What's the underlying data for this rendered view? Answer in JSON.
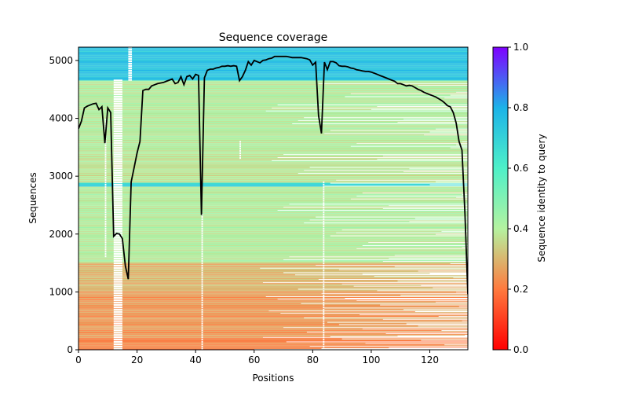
{
  "chart_data": {
    "type": "heatmap",
    "title": "Sequence coverage",
    "xlabel": "Positions",
    "ylabel": "Sequences",
    "xlim": [
      0,
      133
    ],
    "ylim": [
      0,
      5230
    ],
    "xticks": [
      0,
      20,
      40,
      60,
      80,
      100,
      120
    ],
    "yticks": [
      0,
      1000,
      2000,
      3000,
      4000,
      5000
    ],
    "grid": false,
    "colorbar": {
      "label": "Sequence identity to query",
      "range": [
        0.0,
        1.0
      ],
      "ticks": [
        "0.0",
        "0.2",
        "0.4",
        "0.6",
        "0.8",
        "1.0"
      ],
      "colormap": "rainbow_r"
    },
    "identity_bands": [
      {
        "y": [
          0,
          200
        ],
        "identity": 0.22
      },
      {
        "y": [
          200,
          1000
        ],
        "identity": 0.25
      },
      {
        "y": [
          1000,
          1500
        ],
        "identity": 0.3
      },
      {
        "y": [
          1500,
          2820
        ],
        "identity": 0.4
      },
      {
        "y": [
          2820,
          2880
        ],
        "identity": 0.7
      },
      {
        "y": [
          2880,
          3400
        ],
        "identity": 0.38
      },
      {
        "y": [
          3400,
          4650
        ],
        "identity": 0.4
      },
      {
        "y": [
          4650,
          5230
        ],
        "identity": 0.75
      }
    ],
    "coverage_line": {
      "color": "#000000",
      "x": [
        0,
        1,
        2,
        3,
        4,
        5,
        6,
        7,
        8,
        9,
        10,
        11,
        12,
        13,
        14,
        15,
        16,
        17,
        18,
        19,
        20,
        21,
        22,
        23,
        24,
        25,
        26,
        27,
        28,
        29,
        30,
        31,
        32,
        33,
        34,
        35,
        36,
        37,
        38,
        39,
        40,
        41,
        42,
        43,
        44,
        45,
        46,
        47,
        48,
        49,
        50,
        51,
        52,
        53,
        54,
        55,
        56,
        57,
        58,
        59,
        60,
        61,
        62,
        63,
        64,
        65,
        66,
        67,
        68,
        69,
        70,
        71,
        72,
        73,
        74,
        75,
        76,
        77,
        78,
        79,
        80,
        81,
        82,
        83,
        84,
        85,
        86,
        87,
        88,
        89,
        90,
        91,
        92,
        93,
        94,
        95,
        96,
        97,
        98,
        99,
        100,
        101,
        102,
        103,
        104,
        105,
        106,
        107,
        108,
        109,
        110,
        111,
        112,
        113,
        114,
        115,
        116,
        117,
        118,
        119,
        120,
        121,
        122,
        123,
        124,
        125,
        126,
        127,
        128,
        129,
        130,
        131,
        132,
        133
      ],
      "y": [
        3820,
        3950,
        4180,
        4210,
        4230,
        4250,
        4260,
        4150,
        4200,
        3570,
        4180,
        4100,
        1960,
        2010,
        2000,
        1920,
        1450,
        1220,
        2900,
        3150,
        3400,
        3600,
        4480,
        4500,
        4500,
        4560,
        4580,
        4600,
        4610,
        4620,
        4640,
        4660,
        4680,
        4600,
        4620,
        4720,
        4580,
        4720,
        4740,
        4680,
        4760,
        4740,
        2330,
        4700,
        4830,
        4850,
        4850,
        4870,
        4880,
        4900,
        4900,
        4910,
        4900,
        4910,
        4900,
        4650,
        4720,
        4830,
        4980,
        4920,
        5000,
        4980,
        4960,
        5000,
        5010,
        5030,
        5040,
        5070,
        5070,
        5070,
        5070,
        5070,
        5060,
        5050,
        5050,
        5050,
        5050,
        5040,
        5030,
        5010,
        4920,
        4970,
        4050,
        3740,
        4970,
        4840,
        4980,
        4980,
        4960,
        4910,
        4900,
        4900,
        4890,
        4870,
        4860,
        4840,
        4830,
        4820,
        4810,
        4810,
        4800,
        4780,
        4760,
        4740,
        4720,
        4700,
        4680,
        4660,
        4640,
        4600,
        4600,
        4580,
        4560,
        4570,
        4560,
        4530,
        4500,
        4480,
        4450,
        4430,
        4410,
        4390,
        4370,
        4340,
        4310,
        4270,
        4220,
        4200,
        4100,
        3920,
        3600,
        3450,
        2350,
        960
      ]
    }
  }
}
